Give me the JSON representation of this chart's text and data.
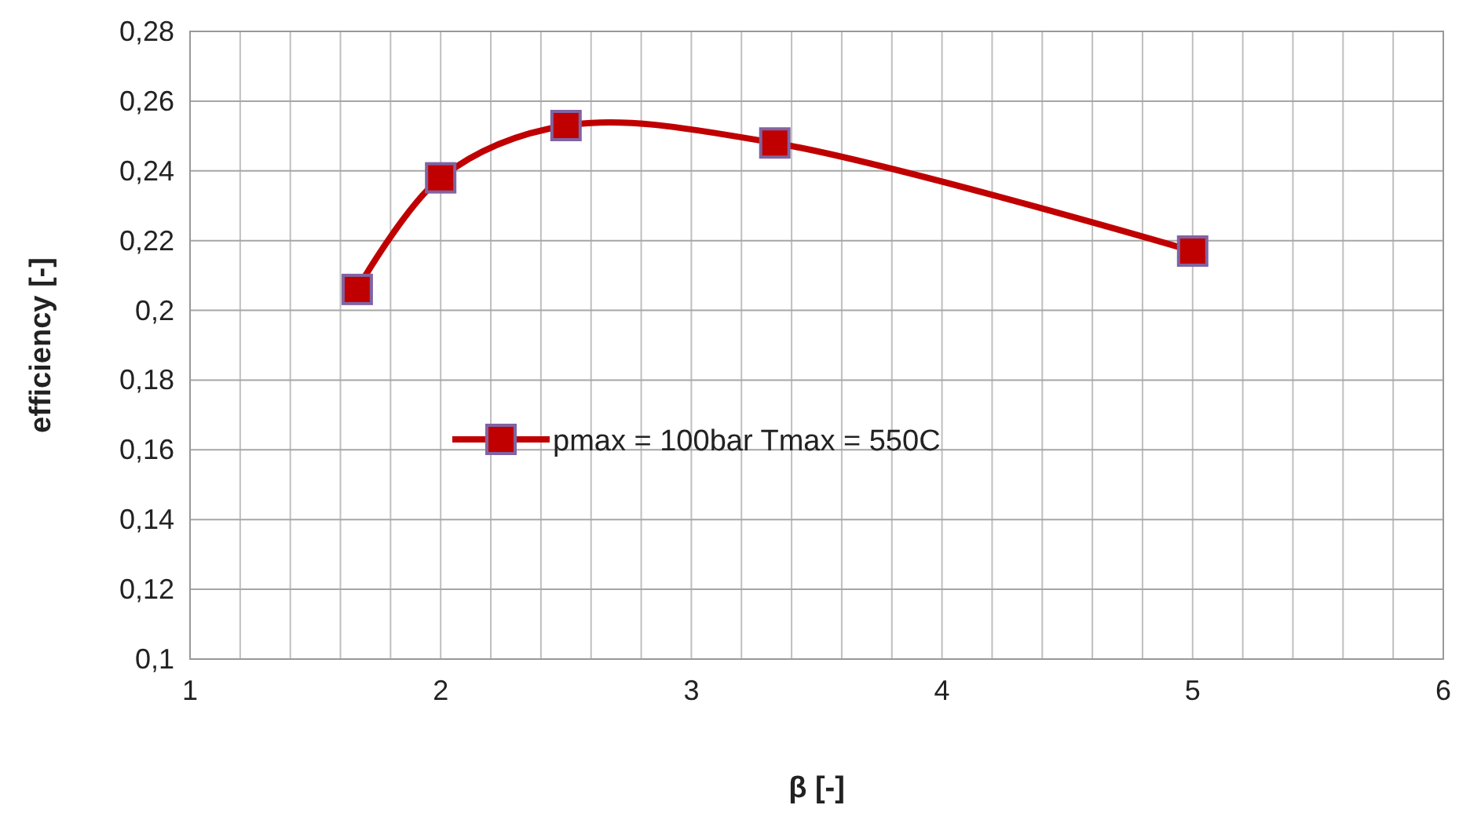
{
  "chart_data": {
    "type": "line",
    "xlabel": "β [-]",
    "ylabel": "efficiency [-]",
    "xlim": [
      1,
      6
    ],
    "xticks": [
      1,
      {
        "value": 1.2,
        "label": null
      },
      {
        "value": 1.4,
        "label": null
      },
      {
        "value": 1.6,
        "label": null
      },
      {
        "value": 1.8,
        "label": null
      },
      2,
      {
        "value": 2.2,
        "label": null
      },
      {
        "value": 2.4,
        "label": null
      },
      {
        "value": 2.6,
        "label": null
      },
      {
        "value": 2.8,
        "label": null
      },
      3,
      {
        "value": 3.2,
        "label": null
      },
      {
        "value": 3.4,
        "label": null
      },
      {
        "value": 3.6,
        "label": null
      },
      {
        "value": 3.8,
        "label": null
      },
      4,
      {
        "value": 4.2,
        "label": null
      },
      {
        "value": 4.4,
        "label": null
      },
      {
        "value": 4.6,
        "label": null
      },
      {
        "value": 4.8,
        "label": null
      },
      5,
      {
        "value": 5.2,
        "label": null
      },
      {
        "value": 5.4,
        "label": null
      },
      {
        "value": 5.6,
        "label": null
      },
      {
        "value": 5.8,
        "label": null
      },
      6
    ],
    "ylim": [
      0.1,
      0.28
    ],
    "yticks": [
      {
        "value": 0.1,
        "label": "0,1"
      },
      {
        "value": 0.12,
        "label": "0,12"
      },
      {
        "value": 0.14,
        "label": "0,14"
      },
      {
        "value": 0.16,
        "label": "0,16"
      },
      {
        "value": 0.18,
        "label": "0,18"
      },
      {
        "value": 0.2,
        "label": "0,2"
      },
      {
        "value": 0.22,
        "label": "0,22"
      },
      {
        "value": 0.24,
        "label": "0,24"
      },
      {
        "value": 0.26,
        "label": "0,26"
      },
      {
        "value": 0.28,
        "label": "0,28"
      }
    ],
    "grid": true,
    "legend": "left",
    "marker": "square",
    "line_style": "solid",
    "series": [
      {
        "name": "pmax = 100bar Tmax = 550C",
        "color": "#c00000",
        "x": [
          1.667,
          2,
          2.5,
          3.333,
          5
        ],
        "values": [
          0.206,
          0.238,
          0.253,
          0.248,
          0.217
        ]
      }
    ]
  }
}
